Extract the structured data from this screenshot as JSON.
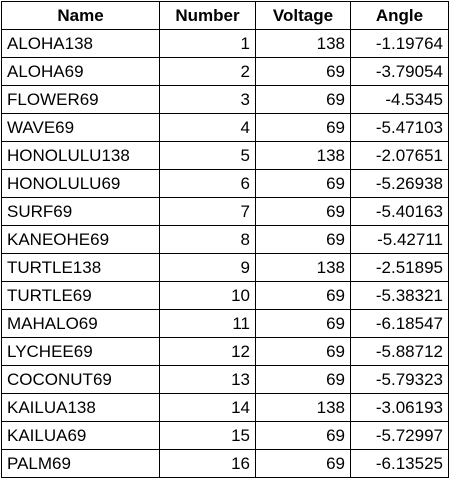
{
  "table": {
    "columns": [
      "Name",
      "Number",
      "Voltage",
      "Angle"
    ],
    "rows": [
      {
        "name": "ALOHA138",
        "number": "1",
        "voltage": "138",
        "angle": "-1.19764"
      },
      {
        "name": "ALOHA69",
        "number": "2",
        "voltage": "69",
        "angle": "-3.79054"
      },
      {
        "name": "FLOWER69",
        "number": "3",
        "voltage": "69",
        "angle": "-4.5345"
      },
      {
        "name": "WAVE69",
        "number": "4",
        "voltage": "69",
        "angle": "-5.47103"
      },
      {
        "name": "HONOLULU138",
        "number": "5",
        "voltage": "138",
        "angle": "-2.07651"
      },
      {
        "name": "HONOLULU69",
        "number": "6",
        "voltage": "69",
        "angle": "-5.26938"
      },
      {
        "name": "SURF69",
        "number": "7",
        "voltage": "69",
        "angle": "-5.40163"
      },
      {
        "name": "KANEOHE69",
        "number": "8",
        "voltage": "69",
        "angle": "-5.42711"
      },
      {
        "name": "TURTLE138",
        "number": "9",
        "voltage": "138",
        "angle": "-2.51895"
      },
      {
        "name": "TURTLE69",
        "number": "10",
        "voltage": "69",
        "angle": "-5.38321"
      },
      {
        "name": "MAHALO69",
        "number": "11",
        "voltage": "69",
        "angle": "-6.18547"
      },
      {
        "name": "LYCHEE69",
        "number": "12",
        "voltage": "69",
        "angle": "-5.88712"
      },
      {
        "name": "COCONUT69",
        "number": "13",
        "voltage": "69",
        "angle": "-5.79323"
      },
      {
        "name": "KAILUA138",
        "number": "14",
        "voltage": "138",
        "angle": "-3.06193"
      },
      {
        "name": "KAILUA69",
        "number": "15",
        "voltage": "69",
        "angle": "-5.72997"
      },
      {
        "name": "PALM69",
        "number": "16",
        "voltage": "69",
        "angle": "-6.13525"
      }
    ]
  }
}
